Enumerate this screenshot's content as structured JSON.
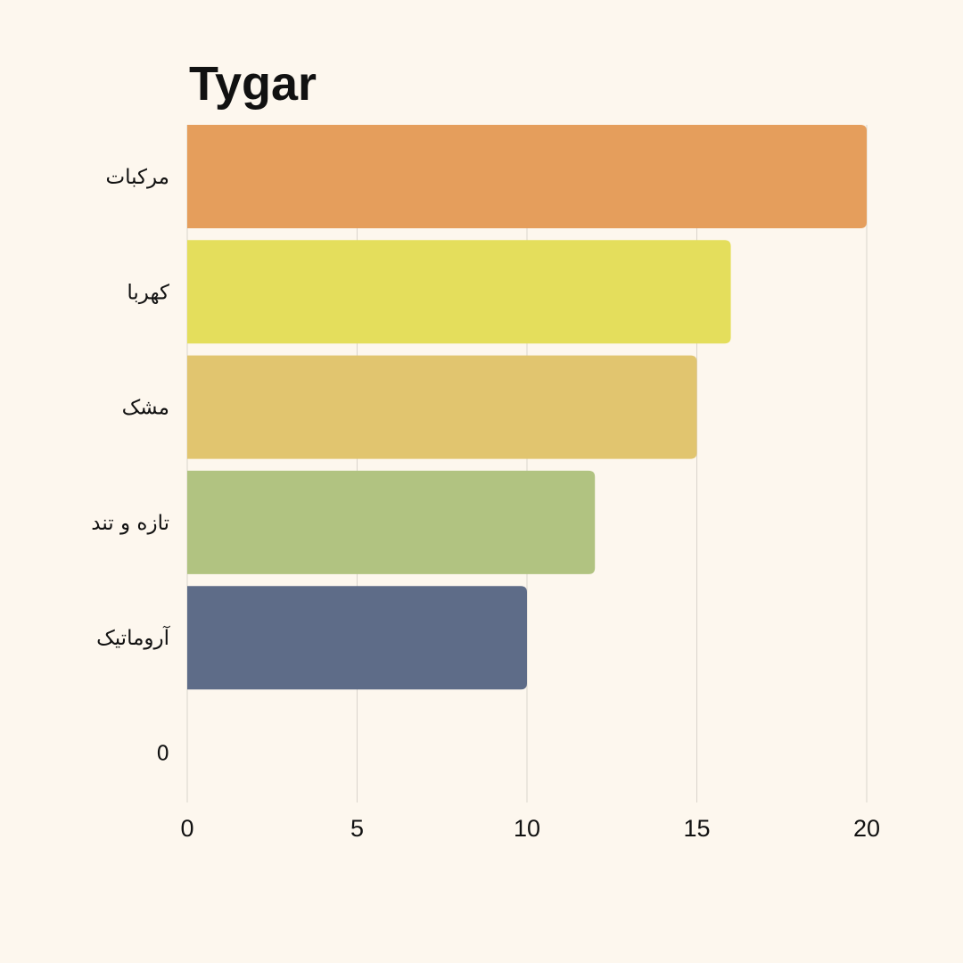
{
  "chart_data": {
    "type": "bar",
    "orientation": "horizontal",
    "title": "Tygar",
    "xlabel": "",
    "ylabel": "",
    "categories": [
      "مرکبات",
      "کهربا",
      "مشک",
      "تازه و تند",
      "آروماتیک",
      "0"
    ],
    "values": [
      20,
      16,
      15,
      12,
      10,
      0
    ],
    "colors": [
      "#e59e5c",
      "#e4de5c",
      "#e1c56f",
      "#b1c381",
      "#5e6c88",
      "#fdf7ee"
    ],
    "xlim": [
      0,
      20
    ],
    "xticks": [
      0,
      5,
      10,
      15,
      20
    ],
    "grid": "vertical",
    "legend": "none"
  }
}
